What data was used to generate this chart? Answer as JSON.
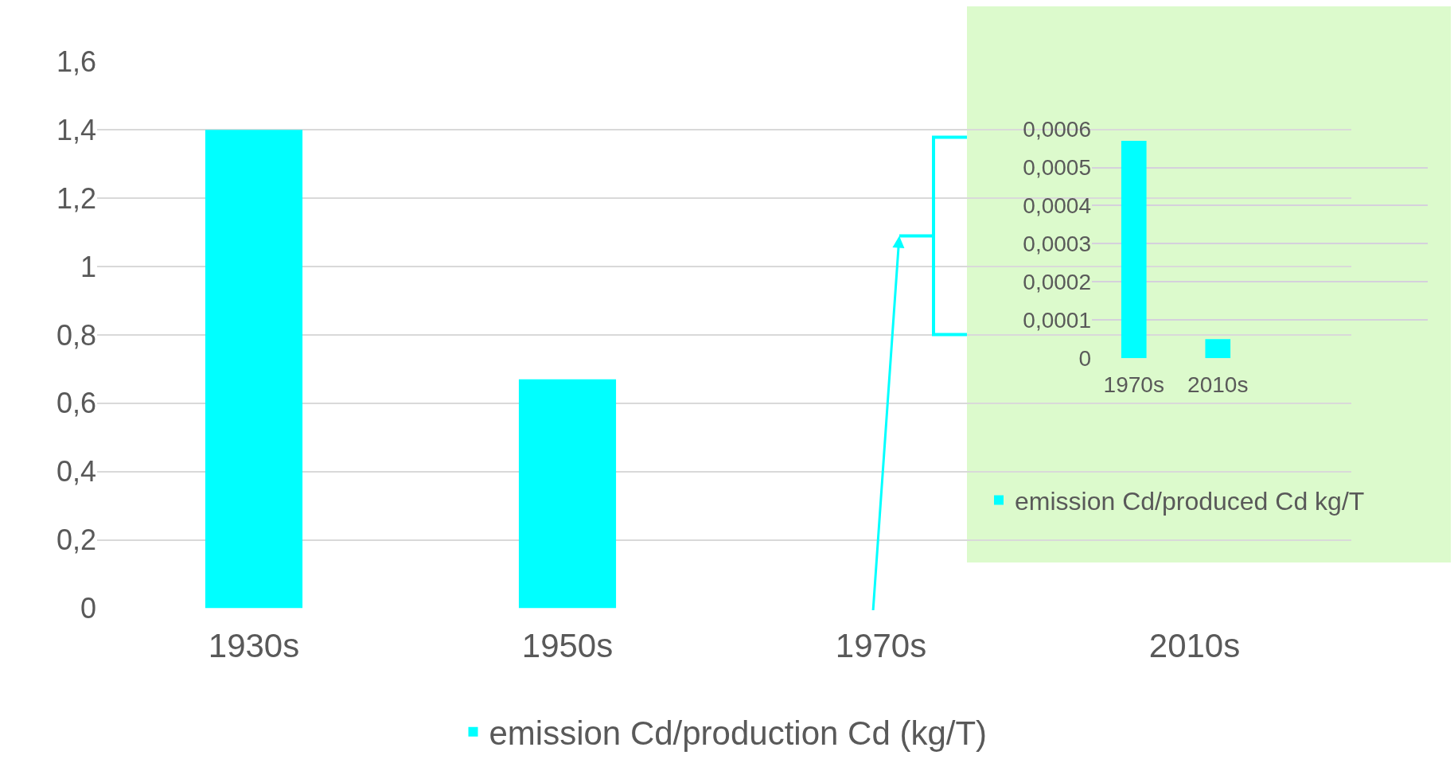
{
  "chart_data": [
    {
      "type": "bar",
      "categories": [
        "1930s",
        "1950s",
        "1970s",
        "2010s"
      ],
      "series": [
        {
          "name": "emission Cd/production Cd (kg/T)",
          "color": "#00ffff",
          "values": [
            1.4,
            0.67,
            0,
            0
          ]
        }
      ],
      "ylim": [
        0,
        1.6
      ],
      "yticks": [
        0,
        {
          "value": 0.2,
          "label": "0,2"
        },
        {
          "value": 0.4,
          "label": "0,4"
        },
        {
          "value": 0.6,
          "label": "0,6"
        },
        {
          "value": 0.8,
          "label": "0,8"
        },
        1,
        {
          "value": 1.2,
          "label": "1,2"
        },
        {
          "value": 1.4,
          "label": "1,4"
        },
        {
          "value": 1.6,
          "label": "1,6"
        }
      ],
      "grid": "y",
      "legend": "bottom"
    },
    {
      "type": "bar",
      "categories": [
        "1970s",
        "2010s"
      ],
      "series": [
        {
          "name": "emission Cd/produced Cd kg/T",
          "color": "#00ffff",
          "values": [
            0.00057,
            5e-05
          ]
        }
      ],
      "ylim": [
        0,
        0.0006
      ],
      "yticks": [
        0,
        {
          "value": 0.0001,
          "label": "0,0001"
        },
        {
          "value": 0.0002,
          "label": "0,0002"
        },
        {
          "value": 0.0003,
          "label": "0,0003"
        },
        {
          "value": 0.0004,
          "label": "0,0004"
        },
        {
          "value": 0.0005,
          "label": "0,0005"
        },
        {
          "value": 0.0006,
          "label": "0,0006"
        }
      ],
      "grid": "y",
      "legend": "bottom"
    }
  ]
}
